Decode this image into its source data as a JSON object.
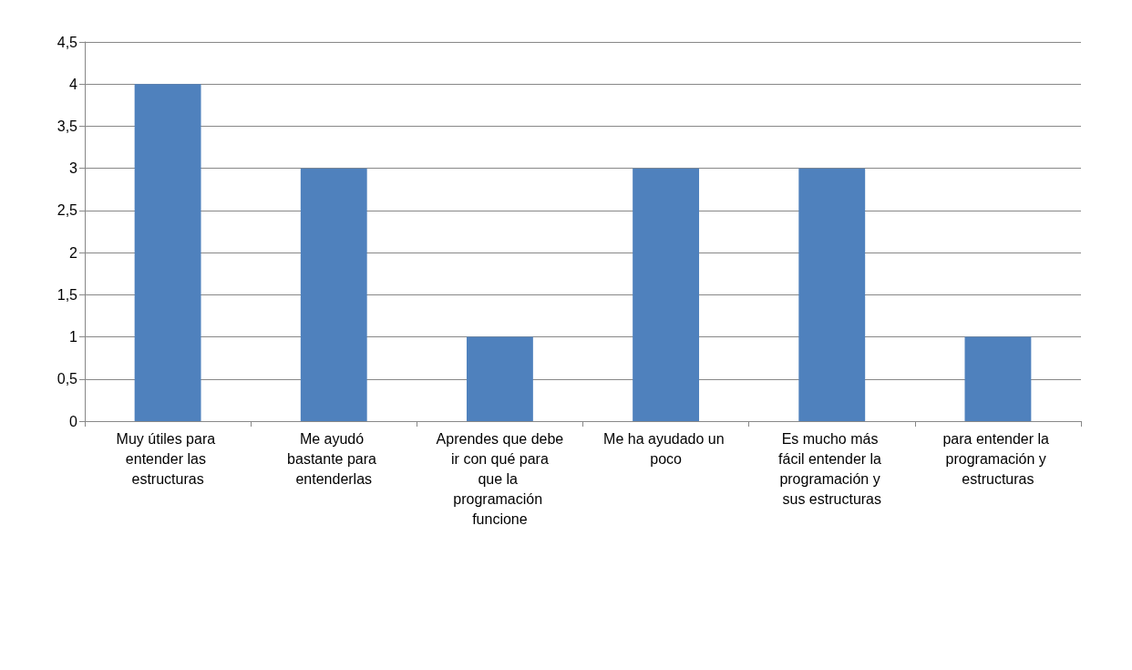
{
  "chart_data": {
    "type": "bar",
    "categories": [
      "Muy útiles para entender las estructuras",
      "Me ayudó bastante para entenderlas",
      "Aprendes que debe ir con qué para que la programación funcione",
      "Me ha ayudado un poco",
      "Es mucho más fácil entender la programación y sus estructuras",
      "para entender la programación y estructuras"
    ],
    "values": [
      4,
      3,
      1,
      3,
      3,
      1
    ],
    "color": "#4f81bd",
    "ylim": [
      0,
      4.5
    ],
    "yticks": [
      0,
      {
        "value": 0.5,
        "label": "0,5"
      },
      1,
      {
        "value": 1.5,
        "label": "1,5"
      },
      2,
      {
        "value": 2.5,
        "label": "2,5"
      },
      3,
      {
        "value": 3.5,
        "label": "3,5"
      },
      4,
      {
        "value": 4.5,
        "label": "4,5"
      }
    ],
    "grid": "y"
  }
}
